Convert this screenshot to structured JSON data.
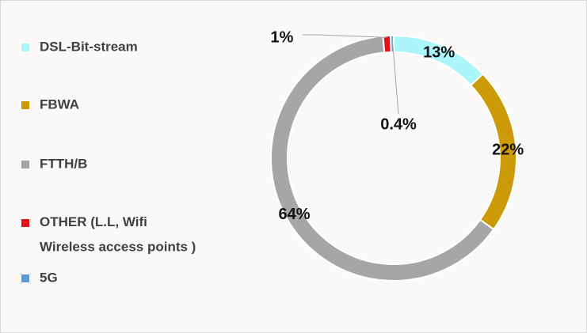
{
  "chart_data": {
    "type": "donut",
    "series": [
      {
        "name": "DSL-Bit-stream",
        "color": "#abf5fb",
        "value": 13,
        "value_label": "13%"
      },
      {
        "name": "FBWA",
        "color": "#cc9a06",
        "value": 22,
        "value_label": "22%"
      },
      {
        "name": "FTTH/B",
        "color": "#a6a6a6",
        "value": 64,
        "value_label": "64%"
      },
      {
        "name": "OTHER (L.L, Wifi\nWireless access points )",
        "color": "#e3141c",
        "value": 1,
        "value_label": "1%"
      },
      {
        "name": "5G",
        "color": "#5b9bd5",
        "value": 0.4,
        "value_label": "0.4%"
      }
    ],
    "legend": "left"
  }
}
